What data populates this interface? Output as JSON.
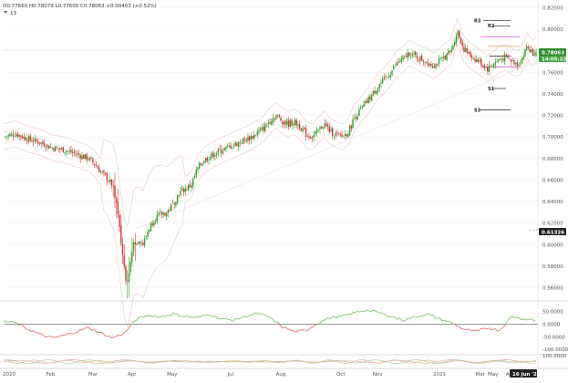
{
  "legend": {
    "ohlc": "O0.77660 H0.78079 L0.77605 C0.78063 +0.00403 (+0.52%)",
    "indicator_count_label": "13"
  },
  "price_pills": {
    "last_price": "0.78063",
    "countdown": "14:05:23",
    "support_marker": "0.61326"
  },
  "date_pill": "16 Jun '21",
  "pivot_labels": [
    "R3",
    "R2",
    "S1",
    "S3"
  ],
  "colors": {
    "bull": "#3a9d2f",
    "bear": "#d23a3a",
    "osc_up": "#7cc36b",
    "osc_down": "#e2706a",
    "envelope": "#f2c4c4",
    "pivot_magenta": "#d048c8",
    "pivot_orange": "#f0a050",
    "pivot_line": "#222222",
    "last_price_bg": "#2e8b2e"
  },
  "chart_data": [
    {
      "type": "candlestick",
      "title": "",
      "xlabel": "",
      "ylabel": "",
      "x_tick_labels": [
        "2020",
        "Feb",
        "Mar",
        "Apr",
        "May",
        "Jul",
        "Aug",
        "Oct",
        "Nov",
        "2021",
        "Mar",
        "Apr",
        "May"
      ],
      "y_tick_labels": [
        "0.82000",
        "0.80000",
        "0.78000",
        "0.76000",
        "0.74000",
        "0.72000",
        "0.70000",
        "0.68000",
        "0.66000",
        "0.64000",
        "0.62000",
        "0.60000",
        "0.58000",
        "0.56000"
      ],
      "ylim": [
        0.552,
        0.822
      ],
      "close_path": [
        [
          0,
          0.7
        ],
        [
          2,
          0.703
        ],
        [
          4,
          0.698
        ],
        [
          6,
          0.695
        ],
        [
          8,
          0.69
        ],
        [
          10,
          0.688
        ],
        [
          12,
          0.684
        ],
        [
          14,
          0.68
        ],
        [
          15,
          0.675
        ],
        [
          16,
          0.668
        ],
        [
          17,
          0.662
        ],
        [
          18,
          0.655
        ],
        [
          18.6,
          0.64
        ],
        [
          19.2,
          0.612
        ],
        [
          19.8,
          0.585
        ],
        [
          20.3,
          0.565
        ],
        [
          20.8,
          0.578
        ],
        [
          21.5,
          0.602
        ],
        [
          22.3,
          0.605
        ],
        [
          23,
          0.6
        ],
        [
          24,
          0.615
        ],
        [
          25,
          0.625
        ],
        [
          26,
          0.628
        ],
        [
          27,
          0.63
        ],
        [
          28,
          0.638
        ],
        [
          29,
          0.648
        ],
        [
          31,
          0.655
        ],
        [
          32,
          0.67
        ],
        [
          33,
          0.678
        ],
        [
          35,
          0.685
        ],
        [
          37,
          0.69
        ],
        [
          39,
          0.695
        ],
        [
          41,
          0.7
        ],
        [
          43,
          0.708
        ],
        [
          44,
          0.715
        ],
        [
          45,
          0.72
        ],
        [
          46,
          0.715
        ],
        [
          47,
          0.712
        ],
        [
          48,
          0.714
        ],
        [
          49,
          0.71
        ],
        [
          50,
          0.702
        ],
        [
          51,
          0.7
        ],
        [
          52,
          0.706
        ],
        [
          53,
          0.712
        ],
        [
          54,
          0.705
        ],
        [
          55,
          0.702
        ],
        [
          56,
          0.7
        ],
        [
          57,
          0.705
        ],
        [
          58,
          0.718
        ],
        [
          59,
          0.725
        ],
        [
          60,
          0.732
        ],
        [
          61,
          0.74
        ],
        [
          62,
          0.748
        ],
        [
          63,
          0.753
        ],
        [
          64,
          0.76
        ],
        [
          65,
          0.768
        ],
        [
          66,
          0.772
        ],
        [
          67,
          0.778
        ],
        [
          68,
          0.775
        ],
        [
          69,
          0.772
        ],
        [
          70,
          0.77
        ],
        [
          71,
          0.766
        ],
        [
          72,
          0.77
        ],
        [
          73,
          0.775
        ],
        [
          74,
          0.78
        ],
        [
          74.5,
          0.79
        ],
        [
          75,
          0.798
        ],
        [
          75.5,
          0.79
        ],
        [
          76,
          0.782
        ],
        [
          77,
          0.776
        ],
        [
          78,
          0.772
        ],
        [
          79,
          0.768
        ],
        [
          80,
          0.763
        ],
        [
          81,
          0.768
        ],
        [
          82,
          0.772
        ],
        [
          83,
          0.774
        ],
        [
          84,
          0.77
        ],
        [
          85,
          0.768
        ],
        [
          85.5,
          0.771
        ],
        [
          86,
          0.776
        ],
        [
          86.5,
          0.785
        ],
        [
          87,
          0.78
        ],
        [
          87.5,
          0.778
        ],
        [
          88,
          0.781
        ]
      ],
      "overlay_pivots": [
        0.808,
        0.803,
        0.793,
        0.784,
        0.775,
        0.765,
        0.745,
        0.725
      ],
      "annotated_price": 0.78063,
      "support_level": 0.61326
    },
    {
      "type": "line",
      "title": "",
      "xlabel": "",
      "ylabel": "",
      "y_tick_labels": [
        "50.0000",
        "0.0000",
        "-50.0000",
        "-100.0000"
      ],
      "ylim": [
        -110,
        80
      ],
      "osc_path": [
        [
          0,
          10
        ],
        [
          2,
          5
        ],
        [
          4,
          -20
        ],
        [
          6,
          -40
        ],
        [
          8,
          -55
        ],
        [
          10,
          -45
        ],
        [
          12,
          -30
        ],
        [
          14,
          -15
        ],
        [
          16,
          -35
        ],
        [
          18,
          -55
        ],
        [
          20,
          -35
        ],
        [
          22,
          20
        ],
        [
          24,
          35
        ],
        [
          26,
          28
        ],
        [
          28,
          40
        ],
        [
          30,
          30
        ],
        [
          32,
          25
        ],
        [
          34,
          38
        ],
        [
          36,
          20
        ],
        [
          38,
          15
        ],
        [
          40,
          30
        ],
        [
          42,
          42
        ],
        [
          44,
          25
        ],
        [
          46,
          -10
        ],
        [
          48,
          -30
        ],
        [
          50,
          -25
        ],
        [
          52,
          5
        ],
        [
          54,
          25
        ],
        [
          56,
          30
        ],
        [
          58,
          45
        ],
        [
          60,
          55
        ],
        [
          62,
          45
        ],
        [
          64,
          30
        ],
        [
          66,
          15
        ],
        [
          68,
          28
        ],
        [
          70,
          40
        ],
        [
          72,
          20
        ],
        [
          74,
          5
        ],
        [
          76,
          -20
        ],
        [
          78,
          -30
        ],
        [
          80,
          -15
        ],
        [
          82,
          -25
        ],
        [
          84,
          30
        ],
        [
          86,
          20
        ],
        [
          88,
          15
        ]
      ]
    },
    {
      "type": "line",
      "title": "",
      "xlabel": "",
      "ylabel": "",
      "y_tick_labels": [
        "100.0000"
      ],
      "ylim": [
        -110,
        110
      ]
    }
  ]
}
